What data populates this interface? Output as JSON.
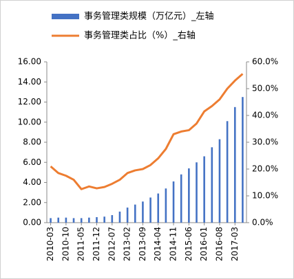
{
  "chart_data": {
    "type": "bar-line",
    "categories": [
      "2010-03",
      null,
      "2010-10",
      null,
      "2011-05",
      null,
      "2011-12",
      null,
      "2012-07",
      null,
      "2013-02",
      null,
      "2013-09",
      null,
      "2014-04",
      null,
      "2014-11",
      null,
      "2015-06",
      null,
      "2016-01",
      null,
      "2016-08",
      null,
      "2017-03",
      null
    ],
    "series": [
      {
        "name": "事务管理类规模（万亿元）_左轴",
        "color": "#4472c4",
        "type": "bar",
        "values": [
          0.45,
          0.5,
          0.5,
          0.45,
          0.45,
          0.5,
          0.55,
          0.6,
          0.75,
          1.1,
          1.5,
          1.8,
          2.1,
          2.5,
          2.9,
          3.4,
          4.1,
          4.8,
          5.4,
          6.0,
          6.6,
          7.5,
          8.3,
          10.1,
          11.5,
          12.5
        ]
      },
      {
        "name": "事务管理类占比（%）_右轴",
        "color": "#ed7d31",
        "type": "line",
        "axis": "y2",
        "values": [
          21,
          18.5,
          17.5,
          16,
          12.5,
          13.5,
          12.8,
          13.3,
          14.5,
          16,
          18.5,
          19.5,
          20,
          21.5,
          24,
          27.5,
          33,
          34,
          34.5,
          37,
          41.5,
          43.5,
          46,
          50,
          53,
          55.5
        ]
      }
    ],
    "ylim": [
      0,
      16
    ],
    "yticks": [
      {
        "value": 0,
        "label": "0.00"
      },
      {
        "value": 2,
        "label": "2.00"
      },
      {
        "value": 4,
        "label": "4.00"
      },
      {
        "value": 6,
        "label": "6.00"
      },
      {
        "value": 8,
        "label": "8.00"
      },
      {
        "value": 10,
        "label": "10.00"
      },
      {
        "value": 12,
        "label": "12.00"
      },
      {
        "value": 14,
        "label": "14.00"
      },
      {
        "value": 16,
        "label": "16.00"
      }
    ],
    "y2lim": [
      0,
      60
    ],
    "y2ticks": [
      {
        "value": 0,
        "label": "0.0%"
      },
      {
        "value": 10,
        "label": "10.0%"
      },
      {
        "value": 20,
        "label": "20.0%"
      },
      {
        "value": 30,
        "label": "30.0%"
      },
      {
        "value": 40,
        "label": "40.0%"
      },
      {
        "value": 50,
        "label": "50.0%"
      },
      {
        "value": 60,
        "label": "60.0%"
      }
    ],
    "grid": false
  }
}
